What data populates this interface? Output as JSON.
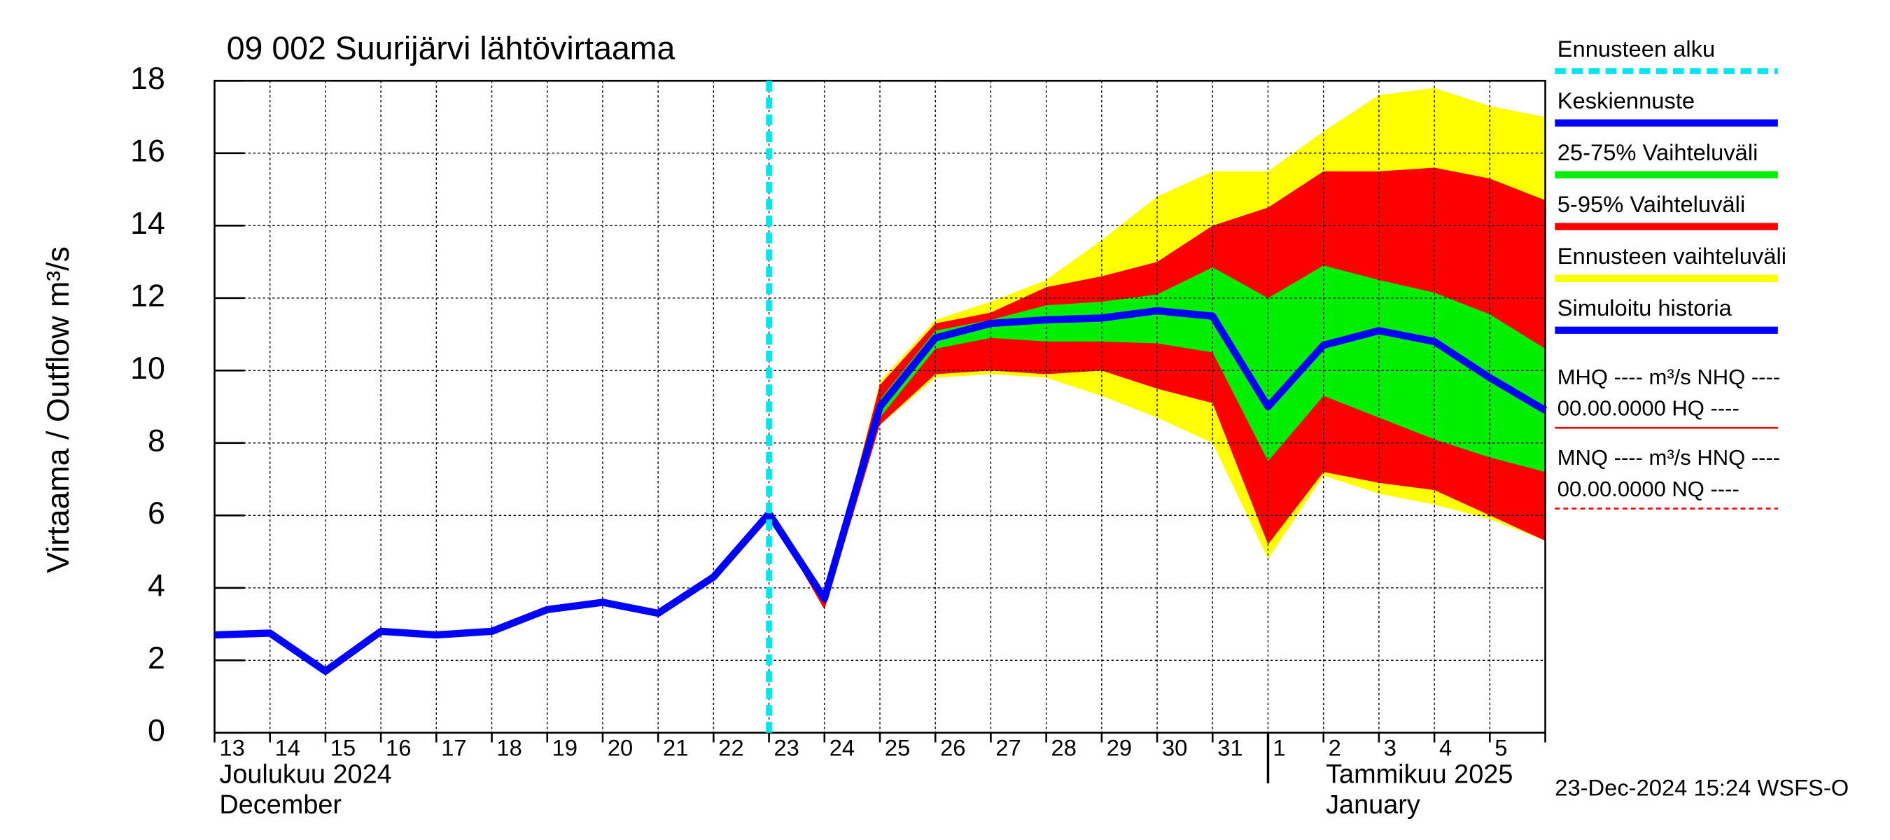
{
  "chart_data": {
    "type": "line",
    "title": "09 002 Suurijärvi lähtövirtaama",
    "y_label": "Virtaama / Outflow   m³/s",
    "categories": [
      "13",
      "14",
      "15",
      "16",
      "17",
      "18",
      "19",
      "20",
      "21",
      "22",
      "23",
      "24",
      "25",
      "26",
      "27",
      "28",
      "29",
      "30",
      "31",
      "1",
      "2",
      "3",
      "4",
      "5",
      null
    ],
    "ylim": [
      0,
      18
    ],
    "yticks": [
      0,
      2,
      4,
      6,
      8,
      10,
      12,
      14,
      16,
      18
    ],
    "grid": true,
    "forecast_start": {
      "name": "Ennusteen alku",
      "category": "23",
      "color": "#00e5ee"
    },
    "bands": [
      {
        "name": "Ennusteen vaihteluväli",
        "color": "#ffff00",
        "upper": [
          null,
          null,
          null,
          null,
          null,
          null,
          null,
          null,
          null,
          null,
          6.05,
          3.7,
          9.7,
          11.4,
          11.9,
          12.5,
          13.6,
          14.8,
          15.5,
          15.5,
          16.6,
          17.6,
          17.8,
          17.3,
          17.0
        ],
        "lower": [
          null,
          null,
          null,
          null,
          null,
          null,
          null,
          null,
          null,
          null,
          6.05,
          3.4,
          8.5,
          9.8,
          9.9,
          9.8,
          9.3,
          8.7,
          8.0,
          4.8,
          7.1,
          6.6,
          6.3,
          5.9,
          5.3
        ]
      },
      {
        "name": "5-95% Vaihteluväli",
        "color": "#ff0000",
        "upper": [
          null,
          null,
          null,
          null,
          null,
          null,
          null,
          null,
          null,
          null,
          6.05,
          3.7,
          9.6,
          11.3,
          11.6,
          12.3,
          12.6,
          13.0,
          14.0,
          14.5,
          15.5,
          15.5,
          15.6,
          15.3,
          14.7
        ],
        "lower": [
          null,
          null,
          null,
          null,
          null,
          null,
          null,
          null,
          null,
          null,
          6.05,
          3.4,
          8.5,
          9.9,
          10.0,
          9.9,
          10.0,
          9.5,
          9.1,
          5.2,
          7.2,
          6.9,
          6.7,
          6.0,
          5.3
        ]
      },
      {
        "name": "25-75% Vaihteluväli",
        "color": "#00ee00",
        "upper": [
          null,
          null,
          null,
          null,
          null,
          null,
          null,
          null,
          null,
          null,
          6.05,
          3.7,
          9.2,
          11.1,
          11.4,
          11.8,
          11.9,
          12.1,
          12.85,
          12.0,
          12.9,
          12.5,
          12.15,
          11.55,
          10.6
        ],
        "lower": [
          null,
          null,
          null,
          null,
          null,
          null,
          null,
          null,
          null,
          null,
          6.05,
          3.6,
          8.7,
          10.6,
          10.9,
          10.8,
          10.8,
          10.75,
          10.5,
          7.5,
          9.3,
          8.7,
          8.1,
          7.6,
          7.2
        ]
      }
    ],
    "series": [
      {
        "name": "Keskiennuste",
        "color": "#0000ff",
        "values": [
          null,
          null,
          null,
          null,
          null,
          null,
          null,
          null,
          null,
          null,
          6.05,
          3.7,
          9.0,
          10.9,
          11.3,
          11.4,
          11.45,
          11.65,
          11.5,
          9.0,
          10.7,
          11.1,
          10.8,
          9.8,
          8.9
        ]
      },
      {
        "name": "Simuloitu historia",
        "color": "#0000ff",
        "values": [
          2.7,
          2.75,
          1.7,
          2.8,
          2.7,
          2.8,
          3.4,
          3.6,
          3.3,
          4.3,
          6.05,
          null,
          null,
          null,
          null,
          null,
          null,
          null,
          null,
          null,
          null,
          null,
          null,
          null,
          null
        ]
      }
    ],
    "legend_order": [
      "forecast_start",
      "series.0",
      "bands.2",
      "bands.1",
      "bands.0",
      "series.1"
    ],
    "reference_notes": [
      {
        "lines": [
          "MHQ ---- m³/s NHQ ----",
          "00.00.0000 HQ ----"
        ],
        "color": "#ff0000",
        "style": "solid"
      },
      {
        "lines": [
          "MNQ ---- m³/s HNQ ----",
          "00.00.0000 NQ ----"
        ],
        "color": "#ff0000",
        "style": "dashed"
      }
    ],
    "month_labels": [
      {
        "category": "13",
        "lines": [
          "Joulukuu  2024",
          "December"
        ]
      },
      {
        "category": "1",
        "lines": [
          "Tammikuu  2025",
          "January"
        ]
      }
    ],
    "footer": "23-Dec-2024 15:24 WSFS-O"
  }
}
